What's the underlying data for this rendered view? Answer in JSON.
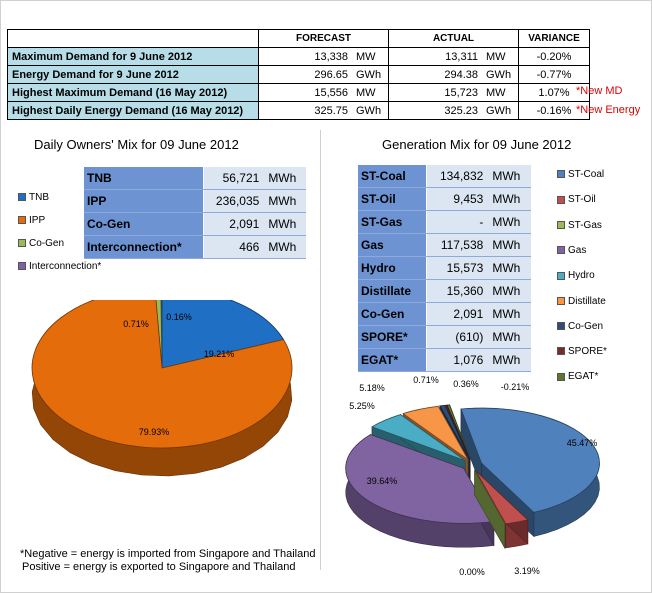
{
  "summary": {
    "headers": [
      "FORECAST",
      "ACTUAL",
      "VARIANCE"
    ],
    "rows": [
      {
        "label": "Maximum Demand for 9 June 2012",
        "forecast": "13,338",
        "forecast_unit": "MW",
        "actual": "13,311",
        "actual_unit": "MW",
        "variance": "-0.20%",
        "note": ""
      },
      {
        "label": "Energy Demand for 9 June 2012",
        "forecast": "296.65",
        "forecast_unit": "GWh",
        "actual": "294.38",
        "actual_unit": "GWh",
        "variance": "-0.77%",
        "note": ""
      },
      {
        "label": "Highest Maximum Demand (16 May 2012)",
        "forecast": "15,556",
        "forecast_unit": "MW",
        "actual": "15,723",
        "actual_unit": "MW",
        "variance": "1.07%",
        "note": "*New MD"
      },
      {
        "label": "Highest Daily Energy Demand (16 May 2012)",
        "forecast": "325.75",
        "forecast_unit": "GWh",
        "actual": "325.23",
        "actual_unit": "GWh",
        "variance": "-0.16%",
        "note": "*New Energy"
      }
    ],
    "label_color": "#b7dee8",
    "note_color": "#e00000"
  },
  "owners_mix": {
    "title": "Daily Owners' Mix for 09 June 2012",
    "table": [
      {
        "name": "TNB",
        "value": "56,721",
        "unit": "MWh"
      },
      {
        "name": "IPP",
        "value": "236,035",
        "unit": "MWh"
      },
      {
        "name": "Co-Gen",
        "value": "2,091",
        "unit": "MWh"
      },
      {
        "name": "Interconnection*",
        "value": "466",
        "unit": "MWh"
      }
    ]
  },
  "generation_mix": {
    "title": "Generation Mix for 09 June 2012",
    "table": [
      {
        "name": "ST-Coal",
        "value": "134,832",
        "unit": "MWh"
      },
      {
        "name": "ST-Oil",
        "value": "9,453",
        "unit": "MWh"
      },
      {
        "name": "ST-Gas",
        "value": "-",
        "unit": "MWh"
      },
      {
        "name": "Gas",
        "value": "117,538",
        "unit": "MWh"
      },
      {
        "name": "Hydro",
        "value": "15,573",
        "unit": "MWh"
      },
      {
        "name": "Distillate",
        "value": "15,360",
        "unit": "MWh"
      },
      {
        "name": "Co-Gen",
        "value": "2,091",
        "unit": "MWh"
      },
      {
        "name": "SPORE*",
        "value": "(610)",
        "unit": "MWh"
      },
      {
        "name": "EGAT*",
        "value": "1,076",
        "unit": "MWh"
      }
    ]
  },
  "footnote": {
    "line1": "*Negative = energy is imported from Singapore and Thailand",
    "line2": "Positive = energy is exported to Singapore and Thailand"
  },
  "chart_data": [
    {
      "type": "pie",
      "title": "Daily Owners' Mix for 09 June 2012",
      "legend_position": "top-left",
      "slices": [
        {
          "name": "TNB",
          "value": 19.21,
          "label": "19.21%",
          "color": "#1f6fc5"
        },
        {
          "name": "IPP",
          "value": 79.93,
          "label": "79.93%",
          "color": "#e46c0a"
        },
        {
          "name": "Co-Gen",
          "value": 0.71,
          "label": "0.71%",
          "color": "#9bbb59"
        },
        {
          "name": "Interconnection*",
          "value": 0.16,
          "label": "0.16%",
          "color": "#7f5fa8"
        }
      ]
    },
    {
      "type": "pie",
      "title": "Generation Mix for 09 June 2012",
      "legend_position": "right",
      "exploded": true,
      "slices": [
        {
          "name": "ST-Coal",
          "value": 45.47,
          "label": "45.47%",
          "color": "#4f81bd"
        },
        {
          "name": "ST-Oil",
          "value": 3.19,
          "label": "3.19%",
          "color": "#c0504d"
        },
        {
          "name": "ST-Gas",
          "value": 0.0,
          "label": "0.00%",
          "color": "#9bbb59"
        },
        {
          "name": "Gas",
          "value": 39.64,
          "label": "39.64%",
          "color": "#8064a2"
        },
        {
          "name": "Hydro",
          "value": 5.25,
          "label": "5.25%",
          "color": "#4bacc6"
        },
        {
          "name": "Distillate",
          "value": 5.18,
          "label": "5.18%",
          "color": "#f79646"
        },
        {
          "name": "Co-Gen",
          "value": 0.71,
          "label": "0.71%",
          "color": "#2c4d75"
        },
        {
          "name": "SPORE*",
          "value": -0.21,
          "label": "-0.21%",
          "color": "#772c2a"
        },
        {
          "name": "EGAT*",
          "value": 0.36,
          "label": "0.36%",
          "color": "#5f7530"
        }
      ]
    }
  ]
}
